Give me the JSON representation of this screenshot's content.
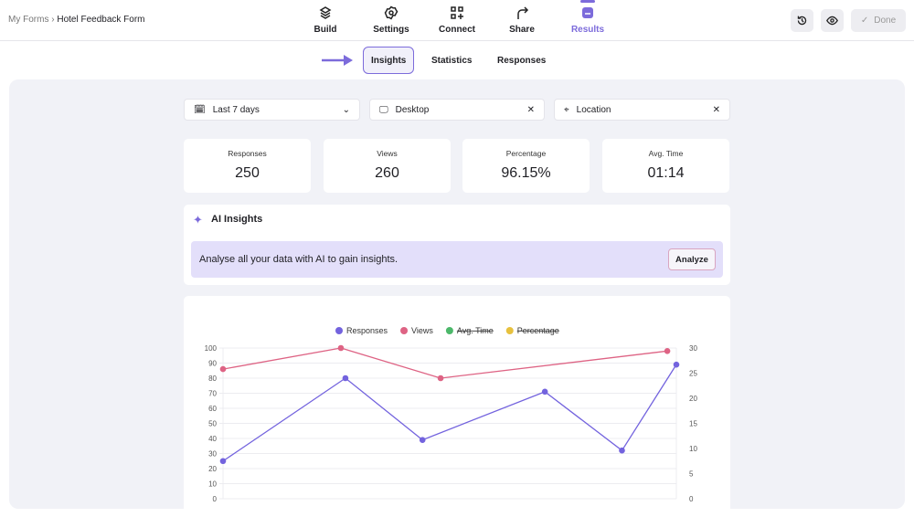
{
  "breadcrumb": {
    "root": "My Forms",
    "separator": "›",
    "current": "Hotel Feedback Form"
  },
  "nav": [
    {
      "label": "Build",
      "icon": "layers-icon"
    },
    {
      "label": "Settings",
      "icon": "gear-icon"
    },
    {
      "label": "Connect",
      "icon": "grid-plus-icon"
    },
    {
      "label": "Share",
      "icon": "share-arrow-icon"
    },
    {
      "label": "Results",
      "icon": "inbox-icon",
      "active": true
    }
  ],
  "actions": {
    "history_icon": "history-icon",
    "preview_icon": "eye-icon",
    "done_label": "Done"
  },
  "subtabs": [
    {
      "label": "Insights",
      "active": true
    },
    {
      "label": "Statistics"
    },
    {
      "label": "Responses"
    }
  ],
  "filters": {
    "date": "Last 7 days",
    "device": "Desktop",
    "location": "Location"
  },
  "stats": [
    {
      "title": "Responses",
      "value": "250"
    },
    {
      "title": "Views",
      "value": "260"
    },
    {
      "title": "Percentage",
      "value": "96.15%"
    },
    {
      "title": "Avg. Time",
      "value": "01:14"
    }
  ],
  "ai": {
    "title": "AI Insights",
    "message": "Analyse all your data with AI to gain insights.",
    "button": "Analyze"
  },
  "colors": {
    "accent": "#7c6bdb",
    "responses": "#7363de",
    "views": "#de6384",
    "avg_time": "#4cb86a",
    "percentage": "#e7c13e"
  },
  "chart_data": {
    "type": "line",
    "legend_position": "top",
    "grid": true,
    "y_left": {
      "range": [
        0,
        100
      ],
      "ticks": [
        "0",
        "10",
        "20",
        "30",
        "40",
        "50",
        "60",
        "70",
        "80",
        "90",
        "100"
      ]
    },
    "y_right": {
      "range": [
        0,
        30
      ],
      "ticks": [
        "0",
        "5",
        "10",
        "15",
        "20",
        "25",
        "30"
      ]
    },
    "series": [
      {
        "name": "Responses",
        "values": [
          25,
          80,
          39,
          71,
          32,
          89
        ],
        "hidden": false
      },
      {
        "name": "Views",
        "values": [
          86,
          100,
          80,
          98
        ],
        "hidden": false
      },
      {
        "name": "Avg. Time",
        "values": [],
        "hidden": true
      },
      {
        "name": "Percentage",
        "values": [],
        "hidden": true
      }
    ]
  }
}
